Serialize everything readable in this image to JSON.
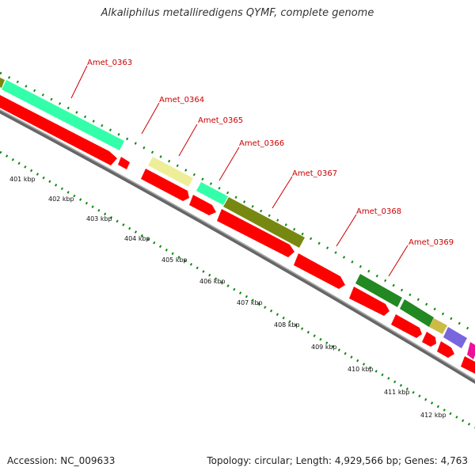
{
  "title": "Alkaliphilus metalliredigens QYMF, complete genome",
  "footer": {
    "accession": "Accession: NC_009633",
    "summary": "Topology: circular; Length: 4,929,566 bp; Genes: 4,763"
  },
  "colors": {
    "cds": "#ff0000",
    "backbone": "#888888",
    "ticks": "#118811",
    "label": "#cc0000",
    "cog_teal": "#33ffaa",
    "cog_pale_yellow": "#eeee99",
    "cog_olive": "#778811",
    "cog_green": "#228822",
    "cog_purple": "#7766dd",
    "cog_magenta": "#ee1199"
  },
  "ruler_labels": [
    "401 kbp",
    "402 kbp",
    "403 kbp",
    "404 kbp",
    "405 kbp",
    "406 kbp",
    "407 kbp",
    "408 kbp",
    "409 kbp",
    "410 kbp",
    "411 kbp",
    "412 kbp"
  ],
  "gene_labels": [
    "Amet_0363",
    "Amet_0364",
    "Amet_0365",
    "Amet_0366",
    "Amet_0367",
    "Amet_0368",
    "Amet_0369"
  ]
}
